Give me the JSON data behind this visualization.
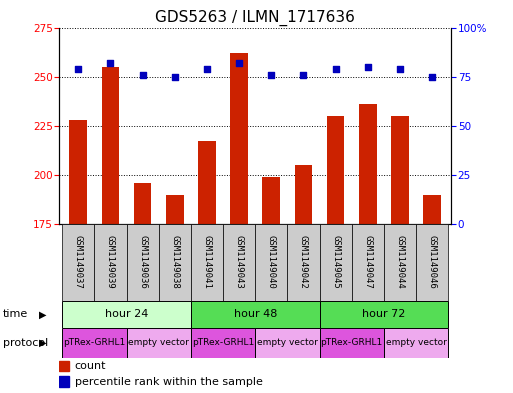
{
  "title": "GDS5263 / ILMN_1717636",
  "samples": [
    "GSM1149037",
    "GSM1149039",
    "GSM1149036",
    "GSM1149038",
    "GSM1149041",
    "GSM1149043",
    "GSM1149040",
    "GSM1149042",
    "GSM1149045",
    "GSM1149047",
    "GSM1149044",
    "GSM1149046"
  ],
  "counts": [
    228,
    255,
    196,
    190,
    217,
    262,
    199,
    205,
    230,
    236,
    230,
    190
  ],
  "percentiles": [
    79,
    82,
    76,
    75,
    79,
    82,
    76,
    76,
    79,
    80,
    79,
    75
  ],
  "ylim_left": [
    175,
    275
  ],
  "ylim_right": [
    0,
    100
  ],
  "yticks_left": [
    175,
    200,
    225,
    250,
    275
  ],
  "yticks_right": [
    0,
    25,
    50,
    75,
    100
  ],
  "bar_color": "#cc2200",
  "dot_color": "#0000bb",
  "time_groups": [
    {
      "label": "hour 24",
      "start": 0,
      "end": 4,
      "color": "#ccffcc"
    },
    {
      "label": "hour 48",
      "start": 4,
      "end": 8,
      "color": "#55dd55"
    },
    {
      "label": "hour 72",
      "start": 8,
      "end": 12,
      "color": "#55dd55"
    }
  ],
  "protocol_groups": [
    {
      "label": "pTRex-GRHL1",
      "start": 0,
      "end": 2,
      "color": "#dd55dd"
    },
    {
      "label": "empty vector",
      "start": 2,
      "end": 4,
      "color": "#eeaaee"
    },
    {
      "label": "pTRex-GRHL1",
      "start": 4,
      "end": 6,
      "color": "#dd55dd"
    },
    {
      "label": "empty vector",
      "start": 6,
      "end": 8,
      "color": "#eeaaee"
    },
    {
      "label": "pTRex-GRHL1",
      "start": 8,
      "end": 10,
      "color": "#dd55dd"
    },
    {
      "label": "empty vector",
      "start": 10,
      "end": 12,
      "color": "#eeaaee"
    }
  ],
  "time_label": "time",
  "protocol_label": "protocol",
  "legend_count_label": "count",
  "legend_percentile_label": "percentile rank within the sample",
  "bg_color": "#ffffff",
  "title_fontsize": 11,
  "tick_fontsize": 7.5,
  "sample_fontsize": 6.5,
  "row_label_fontsize": 8,
  "legend_fontsize": 8
}
